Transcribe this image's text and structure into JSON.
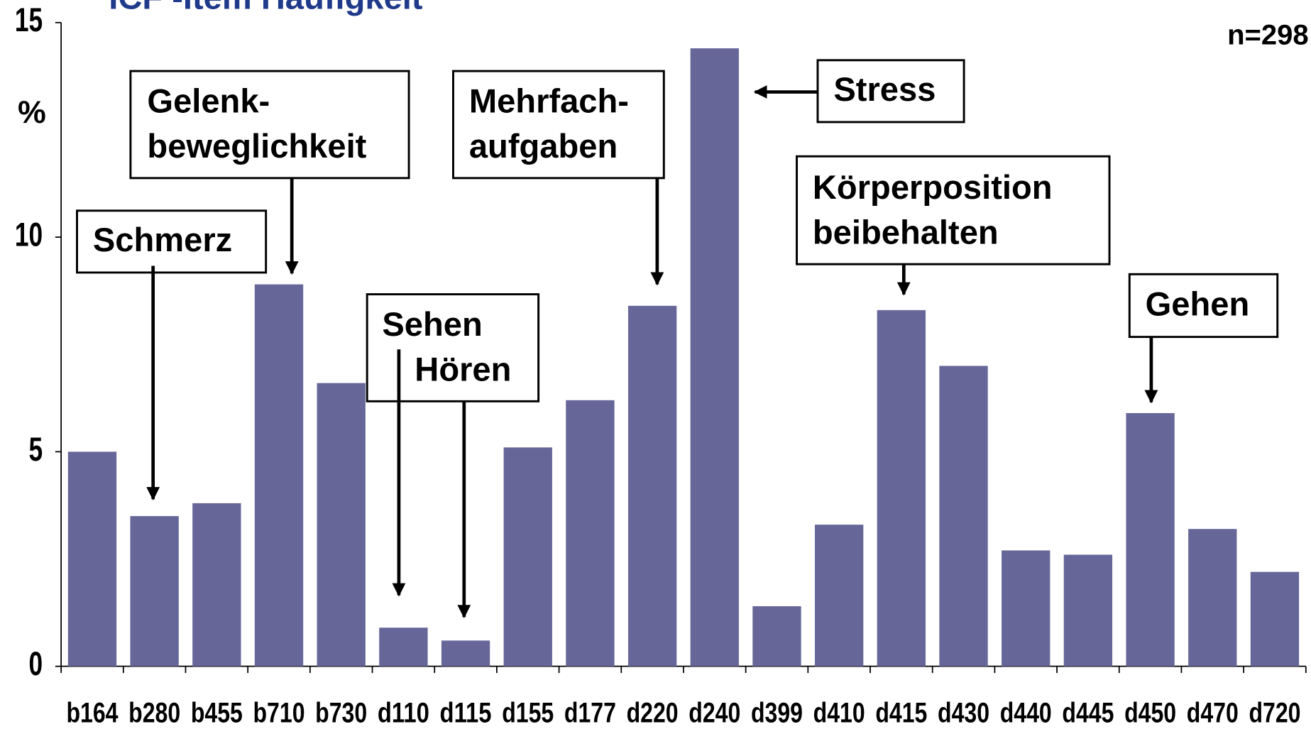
{
  "chart_data": {
    "type": "bar",
    "title": "ICF -Item Häufigkeit",
    "note": "n=298",
    "y_label": "%",
    "categories": [
      "b164",
      "b280",
      "b455",
      "b710",
      "b730",
      "d110",
      "d115",
      "d155",
      "d177",
      "d220",
      "d240",
      "d399",
      "d410",
      "d415",
      "d430",
      "d440",
      "d445",
      "d450",
      "d470",
      "d720"
    ],
    "values": [
      5.0,
      3.5,
      3.8,
      8.9,
      6.6,
      0.9,
      0.6,
      5.1,
      6.2,
      8.4,
      14.4,
      1.4,
      3.3,
      8.3,
      7.0,
      2.7,
      2.6,
      5.9,
      3.2,
      2.2
    ],
    "color": "#666699",
    "ylim": [
      0,
      15
    ],
    "yticks": [
      0,
      5,
      10,
      15
    ],
    "annotations": [
      {
        "lines": [
          "Schmerz"
        ]
      },
      {
        "lines": [
          "Gelenk-",
          "beweglichkeit"
        ]
      },
      {
        "lines": [
          "Mehrfach-",
          "aufgaben"
        ]
      },
      {
        "lines": [
          "Stress"
        ]
      },
      {
        "lines": [
          "Sehen",
          "Hören"
        ]
      },
      {
        "lines": [
          "Körperposition",
          "beibehalten"
        ]
      },
      {
        "lines": [
          "Gehen"
        ]
      }
    ]
  }
}
